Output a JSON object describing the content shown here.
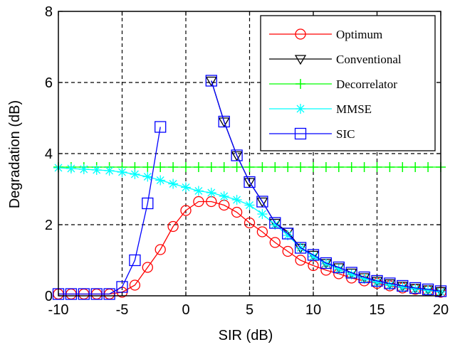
{
  "chart_data": {
    "type": "line",
    "title": "",
    "xlabel": "SIR (dB)",
    "ylabel": "Degradation (dB)",
    "xlim": [
      -10,
      20
    ],
    "ylim": [
      0,
      8
    ],
    "xticks": [
      -10,
      -5,
      0,
      5,
      10,
      15,
      20
    ],
    "yticks": [
      0,
      2,
      4,
      6,
      8
    ],
    "grid": true,
    "legend_position": "top-right",
    "series": [
      {
        "name": "Optimum",
        "color": "#ff0000",
        "marker": "circle",
        "x": [
          -10,
          -9,
          -8,
          -7,
          -6,
          -5,
          -4,
          -3,
          -2,
          -1,
          0,
          1,
          2,
          3,
          4,
          5,
          6,
          7,
          8,
          9,
          10,
          11,
          12,
          13,
          14,
          15,
          16,
          17,
          18,
          19,
          20
        ],
        "y": [
          0.05,
          0.05,
          0.05,
          0.05,
          0.05,
          0.1,
          0.3,
          0.8,
          1.3,
          1.95,
          2.4,
          2.65,
          2.65,
          2.55,
          2.35,
          2.05,
          1.8,
          1.5,
          1.25,
          1.0,
          0.85,
          0.72,
          0.62,
          0.5,
          0.42,
          0.35,
          0.28,
          0.22,
          0.18,
          0.14,
          0.1
        ]
      },
      {
        "name": "Conventional",
        "color": "#000000",
        "marker": "triangle-down",
        "x": [
          2,
          3,
          4,
          5,
          6,
          7,
          8,
          9,
          10,
          11,
          12,
          13,
          14,
          15,
          16,
          17,
          18,
          19,
          20
        ],
        "y": [
          6.05,
          4.9,
          3.95,
          3.2,
          2.65,
          2.05,
          1.8,
          1.35,
          1.15,
          0.92,
          0.8,
          0.65,
          0.52,
          0.42,
          0.35,
          0.28,
          0.22,
          0.18,
          0.13
        ]
      },
      {
        "name": "Decorrelator",
        "color": "#00ff00",
        "marker": "plus",
        "x": [
          -10,
          -9,
          -8,
          -7,
          -6,
          -5,
          -4,
          -3,
          -2,
          -1,
          0,
          1,
          2,
          3,
          4,
          5,
          6,
          7,
          8,
          9,
          10,
          11,
          12,
          13,
          14,
          15,
          16,
          17,
          18,
          19,
          20
        ],
        "y": [
          3.62,
          3.62,
          3.62,
          3.62,
          3.62,
          3.62,
          3.62,
          3.62,
          3.62,
          3.62,
          3.62,
          3.62,
          3.62,
          3.62,
          3.62,
          3.62,
          3.62,
          3.62,
          3.62,
          3.62,
          3.62,
          3.62,
          3.62,
          3.62,
          3.62,
          3.62,
          3.62,
          3.62,
          3.62,
          3.62,
          3.62
        ]
      },
      {
        "name": "MMSE",
        "color": "#00ffff",
        "marker": "asterisk",
        "x": [
          -10,
          -9,
          -8,
          -7,
          -6,
          -5,
          -4,
          -3,
          -2,
          -1,
          0,
          1,
          2,
          3,
          4,
          5,
          6,
          7,
          8,
          9,
          10,
          11,
          12,
          13,
          14,
          15,
          16,
          17,
          18,
          19,
          20
        ],
        "y": [
          3.6,
          3.58,
          3.56,
          3.54,
          3.52,
          3.48,
          3.42,
          3.35,
          3.25,
          3.15,
          3.05,
          2.95,
          2.9,
          2.8,
          2.7,
          2.55,
          2.3,
          2.0,
          1.7,
          1.35,
          1.1,
          0.9,
          0.75,
          0.6,
          0.48,
          0.38,
          0.3,
          0.24,
          0.19,
          0.15,
          0.11
        ]
      },
      {
        "name": "SIC",
        "color": "#0000ff",
        "marker": "square",
        "x": [
          -10,
          -9,
          -8,
          -7,
          -6,
          -5,
          -4,
          -3,
          -2,
          2,
          3,
          4,
          5,
          6,
          7,
          8,
          9,
          10,
          11,
          12,
          13,
          14,
          15,
          16,
          17,
          18,
          19,
          20
        ],
        "y": [
          0.05,
          0.05,
          0.05,
          0.05,
          0.05,
          0.25,
          1.0,
          2.6,
          4.75,
          6.05,
          4.9,
          3.95,
          3.2,
          2.65,
          2.05,
          1.75,
          1.35,
          1.15,
          0.92,
          0.8,
          0.65,
          0.52,
          0.42,
          0.35,
          0.28,
          0.22,
          0.18,
          0.13
        ],
        "segments": [
          [
            0,
            8
          ],
          [
            9,
            27
          ]
        ]
      }
    ]
  }
}
